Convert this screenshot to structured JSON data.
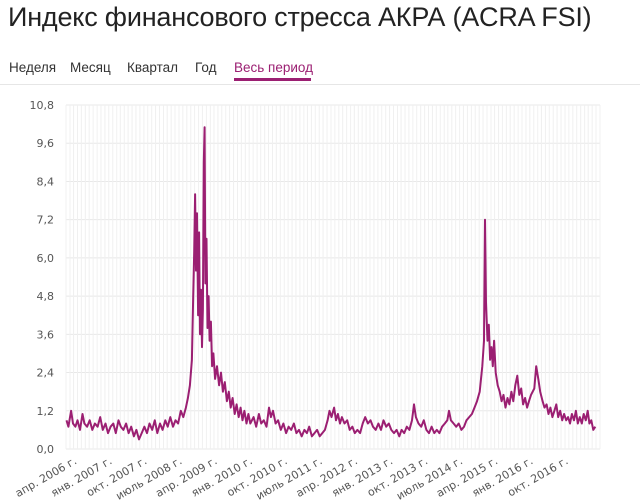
{
  "header": {
    "title": "Индекс финансового стресса АКРА (ACRA FSI)"
  },
  "tabs": [
    {
      "label": "Неделя",
      "active": false
    },
    {
      "label": "Месяц",
      "active": false
    },
    {
      "label": "Квартал",
      "active": false
    },
    {
      "label": "Год",
      "active": false
    },
    {
      "label": "Весь период",
      "active": true
    }
  ],
  "colors": {
    "series": "#9b1f72",
    "grid": "#e8e8e8",
    "accent": "#9b1f72"
  },
  "chart_data": {
    "type": "line",
    "title": "",
    "xlabel": "",
    "ylabel": "",
    "ylim": [
      0,
      10.8
    ],
    "xlim": [
      "2006-01-01",
      "2017-06-01"
    ],
    "grid": true,
    "legend": "none",
    "y_ticks": [
      "0,0",
      "1,2",
      "2,4",
      "3,6",
      "4,8",
      "6,0",
      "7,2",
      "8,4",
      "9,6",
      "10,8"
    ],
    "x_ticks": [
      {
        "label": "апр. 2006 г.",
        "date": "2006-04-01"
      },
      {
        "label": "янв. 2007 г.",
        "date": "2007-01-01"
      },
      {
        "label": "окт. 2007 г.",
        "date": "2007-10-01"
      },
      {
        "label": "июль 2008 г.",
        "date": "2008-07-01"
      },
      {
        "label": "апр. 2009 г.",
        "date": "2009-04-01"
      },
      {
        "label": "янв. 2010 г.",
        "date": "2010-01-01"
      },
      {
        "label": "окт. 2010 г.",
        "date": "2010-10-01"
      },
      {
        "label": "июль 2011 г.",
        "date": "2011-07-01"
      },
      {
        "label": "апр. 2012 г.",
        "date": "2012-04-01"
      },
      {
        "label": "янв. 2013 г.",
        "date": "2013-01-01"
      },
      {
        "label": "окт. 2013 г.",
        "date": "2013-10-01"
      },
      {
        "label": "июль 2014 г.",
        "date": "2014-07-01"
      },
      {
        "label": "апр. 2015 г.",
        "date": "2015-04-01"
      },
      {
        "label": "янв. 2016 г.",
        "date": "2016-01-01"
      },
      {
        "label": "окт. 2016 г.",
        "date": "2016-10-01"
      }
    ],
    "series": [
      {
        "color": "#9b1f72",
        "points": [
          [
            "2006-01-05",
            0.9
          ],
          [
            "2006-01-20",
            0.7
          ],
          [
            "2006-02-10",
            1.2
          ],
          [
            "2006-02-25",
            0.8
          ],
          [
            "2006-03-15",
            0.7
          ],
          [
            "2006-04-01",
            0.9
          ],
          [
            "2006-04-20",
            0.6
          ],
          [
            "2006-05-10",
            1.1
          ],
          [
            "2006-05-25",
            0.8
          ],
          [
            "2006-06-15",
            0.7
          ],
          [
            "2006-07-05",
            0.9
          ],
          [
            "2006-07-25",
            0.6
          ],
          [
            "2006-08-15",
            0.8
          ],
          [
            "2006-09-05",
            0.7
          ],
          [
            "2006-09-25",
            1.0
          ],
          [
            "2006-10-15",
            0.6
          ],
          [
            "2006-11-05",
            0.8
          ],
          [
            "2006-11-25",
            0.5
          ],
          [
            "2006-12-15",
            0.7
          ],
          [
            "2007-01-05",
            0.8
          ],
          [
            "2007-01-25",
            0.5
          ],
          [
            "2007-02-15",
            0.9
          ],
          [
            "2007-03-05",
            0.7
          ],
          [
            "2007-03-25",
            0.6
          ],
          [
            "2007-04-15",
            0.8
          ],
          [
            "2007-05-05",
            0.5
          ],
          [
            "2007-05-25",
            0.7
          ],
          [
            "2007-06-15",
            0.4
          ],
          [
            "2007-07-05",
            0.6
          ],
          [
            "2007-07-25",
            0.3
          ],
          [
            "2007-08-15",
            0.5
          ],
          [
            "2007-09-05",
            0.7
          ],
          [
            "2007-09-25",
            0.5
          ],
          [
            "2007-10-15",
            0.8
          ],
          [
            "2007-11-05",
            0.6
          ],
          [
            "2007-11-25",
            0.9
          ],
          [
            "2007-12-15",
            0.5
          ],
          [
            "2008-01-05",
            0.8
          ],
          [
            "2008-01-25",
            0.6
          ],
          [
            "2008-02-15",
            0.9
          ],
          [
            "2008-03-05",
            0.7
          ],
          [
            "2008-03-25",
            1.0
          ],
          [
            "2008-04-15",
            0.7
          ],
          [
            "2008-05-05",
            0.9
          ],
          [
            "2008-05-25",
            0.8
          ],
          [
            "2008-06-15",
            1.2
          ],
          [
            "2008-07-05",
            1.0
          ],
          [
            "2008-07-25",
            1.3
          ],
          [
            "2008-08-10",
            1.6
          ],
          [
            "2008-08-25",
            2.0
          ],
          [
            "2008-09-10",
            2.8
          ],
          [
            "2008-09-20",
            4.8
          ],
          [
            "2008-09-28",
            6.2
          ],
          [
            "2008-10-05",
            8.0
          ],
          [
            "2008-10-12",
            5.6
          ],
          [
            "2008-10-20",
            7.4
          ],
          [
            "2008-10-28",
            4.2
          ],
          [
            "2008-11-05",
            6.8
          ],
          [
            "2008-11-12",
            3.6
          ],
          [
            "2008-11-20",
            5.0
          ],
          [
            "2008-11-28",
            3.2
          ],
          [
            "2008-12-05",
            4.4
          ],
          [
            "2008-12-12",
            9.0
          ],
          [
            "2008-12-18",
            10.1
          ],
          [
            "2008-12-24",
            5.2
          ],
          [
            "2009-01-02",
            6.6
          ],
          [
            "2009-01-10",
            3.8
          ],
          [
            "2009-01-18",
            4.8
          ],
          [
            "2009-01-26",
            3.4
          ],
          [
            "2009-02-05",
            4.0
          ],
          [
            "2009-02-15",
            2.6
          ],
          [
            "2009-02-25",
            3.0
          ],
          [
            "2009-03-10",
            2.2
          ],
          [
            "2009-03-25",
            2.6
          ],
          [
            "2009-04-10",
            2.0
          ],
          [
            "2009-04-25",
            2.4
          ],
          [
            "2009-05-10",
            1.8
          ],
          [
            "2009-05-25",
            2.1
          ],
          [
            "2009-06-10",
            1.5
          ],
          [
            "2009-06-25",
            1.8
          ],
          [
            "2009-07-10",
            1.3
          ],
          [
            "2009-07-25",
            1.6
          ],
          [
            "2009-08-10",
            1.1
          ],
          [
            "2009-08-25",
            1.4
          ],
          [
            "2009-09-10",
            1.0
          ],
          [
            "2009-09-25",
            1.3
          ],
          [
            "2009-10-10",
            0.9
          ],
          [
            "2009-10-25",
            1.2
          ],
          [
            "2009-11-10",
            0.8
          ],
          [
            "2009-11-25",
            1.1
          ],
          [
            "2009-12-10",
            0.8
          ],
          [
            "2010-01-05",
            1.0
          ],
          [
            "2010-01-25",
            0.7
          ],
          [
            "2010-02-15",
            1.1
          ],
          [
            "2010-03-05",
            0.8
          ],
          [
            "2010-03-25",
            0.9
          ],
          [
            "2010-04-15",
            0.7
          ],
          [
            "2010-05-05",
            1.3
          ],
          [
            "2010-05-20",
            1.0
          ],
          [
            "2010-06-05",
            1.2
          ],
          [
            "2010-06-25",
            0.8
          ],
          [
            "2010-07-15",
            0.9
          ],
          [
            "2010-08-05",
            0.6
          ],
          [
            "2010-08-25",
            0.8
          ],
          [
            "2010-09-15",
            0.5
          ],
          [
            "2010-10-05",
            0.7
          ],
          [
            "2010-10-25",
            0.6
          ],
          [
            "2010-11-15",
            0.8
          ],
          [
            "2010-12-05",
            0.5
          ],
          [
            "2010-12-25",
            0.6
          ],
          [
            "2011-01-15",
            0.4
          ],
          [
            "2011-02-05",
            0.6
          ],
          [
            "2011-02-25",
            0.5
          ],
          [
            "2011-03-15",
            0.7
          ],
          [
            "2011-04-05",
            0.4
          ],
          [
            "2011-04-25",
            0.5
          ],
          [
            "2011-05-15",
            0.6
          ],
          [
            "2011-06-05",
            0.4
          ],
          [
            "2011-06-25",
            0.5
          ],
          [
            "2011-07-15",
            0.6
          ],
          [
            "2011-08-05",
            0.9
          ],
          [
            "2011-08-20",
            1.2
          ],
          [
            "2011-09-05",
            1.0
          ],
          [
            "2011-09-25",
            1.3
          ],
          [
            "2011-10-10",
            0.9
          ],
          [
            "2011-10-25",
            1.1
          ],
          [
            "2011-11-10",
            0.8
          ],
          [
            "2011-11-25",
            1.0
          ],
          [
            "2011-12-15",
            0.8
          ],
          [
            "2012-01-05",
            0.9
          ],
          [
            "2012-01-25",
            0.6
          ],
          [
            "2012-02-15",
            0.7
          ],
          [
            "2012-03-05",
            0.5
          ],
          [
            "2012-03-25",
            0.6
          ],
          [
            "2012-04-15",
            0.5
          ],
          [
            "2012-05-05",
            0.8
          ],
          [
            "2012-05-25",
            1.0
          ],
          [
            "2012-06-15",
            0.8
          ],
          [
            "2012-07-05",
            0.9
          ],
          [
            "2012-07-25",
            0.7
          ],
          [
            "2012-08-15",
            0.6
          ],
          [
            "2012-09-05",
            0.8
          ],
          [
            "2012-09-25",
            0.6
          ],
          [
            "2012-10-15",
            0.9
          ],
          [
            "2012-11-05",
            0.7
          ],
          [
            "2012-11-25",
            0.8
          ],
          [
            "2012-12-15",
            0.6
          ],
          [
            "2013-01-05",
            0.5
          ],
          [
            "2013-01-25",
            0.6
          ],
          [
            "2013-02-15",
            0.4
          ],
          [
            "2013-03-05",
            0.6
          ],
          [
            "2013-03-25",
            0.5
          ],
          [
            "2013-04-15",
            0.7
          ],
          [
            "2013-05-05",
            0.6
          ],
          [
            "2013-05-25",
            0.9
          ],
          [
            "2013-06-10",
            1.4
          ],
          [
            "2013-06-25",
            1.0
          ],
          [
            "2013-07-15",
            0.8
          ],
          [
            "2013-08-05",
            0.7
          ],
          [
            "2013-08-25",
            0.9
          ],
          [
            "2013-09-15",
            0.6
          ],
          [
            "2013-10-05",
            0.5
          ],
          [
            "2013-10-25",
            0.7
          ],
          [
            "2013-11-15",
            0.5
          ],
          [
            "2013-12-05",
            0.6
          ],
          [
            "2013-12-25",
            0.5
          ],
          [
            "2014-01-15",
            0.7
          ],
          [
            "2014-02-05",
            0.8
          ],
          [
            "2014-02-25",
            0.9
          ],
          [
            "2014-03-10",
            1.2
          ],
          [
            "2014-03-25",
            0.9
          ],
          [
            "2014-04-15",
            0.8
          ],
          [
            "2014-05-05",
            0.7
          ],
          [
            "2014-05-25",
            0.8
          ],
          [
            "2014-06-15",
            0.6
          ],
          [
            "2014-07-05",
            0.7
          ],
          [
            "2014-07-25",
            0.9
          ],
          [
            "2014-08-15",
            1.0
          ],
          [
            "2014-09-05",
            1.1
          ],
          [
            "2014-09-25",
            1.3
          ],
          [
            "2014-10-15",
            1.5
          ],
          [
            "2014-11-05",
            1.8
          ],
          [
            "2014-11-25",
            2.6
          ],
          [
            "2014-12-08",
            3.4
          ],
          [
            "2014-12-16",
            7.2
          ],
          [
            "2014-12-24",
            4.6
          ],
          [
            "2015-01-05",
            3.4
          ],
          [
            "2015-01-15",
            3.9
          ],
          [
            "2015-01-25",
            2.8
          ],
          [
            "2015-02-05",
            3.2
          ],
          [
            "2015-02-15",
            2.6
          ],
          [
            "2015-02-25",
            3.4
          ],
          [
            "2015-03-10",
            2.4
          ],
          [
            "2015-03-25",
            2.0
          ],
          [
            "2015-04-10",
            1.8
          ],
          [
            "2015-04-25",
            1.5
          ],
          [
            "2015-05-10",
            1.7
          ],
          [
            "2015-05-25",
            1.3
          ],
          [
            "2015-06-10",
            1.6
          ],
          [
            "2015-06-25",
            1.4
          ],
          [
            "2015-07-10",
            1.8
          ],
          [
            "2015-07-25",
            1.5
          ],
          [
            "2015-08-10",
            2.0
          ],
          [
            "2015-08-25",
            2.3
          ],
          [
            "2015-09-10",
            1.7
          ],
          [
            "2015-09-25",
            1.9
          ],
          [
            "2015-10-10",
            1.4
          ],
          [
            "2015-10-25",
            1.6
          ],
          [
            "2015-11-10",
            1.3
          ],
          [
            "2015-11-25",
            1.5
          ],
          [
            "2015-12-10",
            1.7
          ],
          [
            "2016-01-05",
            1.9
          ],
          [
            "2016-01-20",
            2.6
          ],
          [
            "2016-02-05",
            2.2
          ],
          [
            "2016-02-20",
            1.8
          ],
          [
            "2016-03-10",
            1.5
          ],
          [
            "2016-03-25",
            1.3
          ],
          [
            "2016-04-10",
            1.4
          ],
          [
            "2016-04-25",
            1.1
          ],
          [
            "2016-05-10",
            1.3
          ],
          [
            "2016-05-25",
            1.0
          ],
          [
            "2016-06-10",
            1.2
          ],
          [
            "2016-06-25",
            1.4
          ],
          [
            "2016-07-10",
            1.0
          ],
          [
            "2016-07-25",
            1.2
          ],
          [
            "2016-08-10",
            0.9
          ],
          [
            "2016-08-25",
            1.1
          ],
          [
            "2016-09-10",
            0.9
          ],
          [
            "2016-09-25",
            1.0
          ],
          [
            "2016-10-10",
            0.8
          ],
          [
            "2016-10-25",
            1.1
          ],
          [
            "2016-11-10",
            0.9
          ],
          [
            "2016-11-25",
            1.2
          ],
          [
            "2016-12-10",
            0.8
          ],
          [
            "2016-12-25",
            1.0
          ],
          [
            "2017-01-10",
            0.8
          ],
          [
            "2017-01-25",
            1.1
          ],
          [
            "2017-02-10",
            0.9
          ],
          [
            "2017-02-25",
            1.2
          ],
          [
            "2017-03-10",
            0.8
          ],
          [
            "2017-03-25",
            0.9
          ],
          [
            "2017-04-10",
            0.6
          ],
          [
            "2017-04-25",
            0.7
          ]
        ]
      }
    ]
  }
}
